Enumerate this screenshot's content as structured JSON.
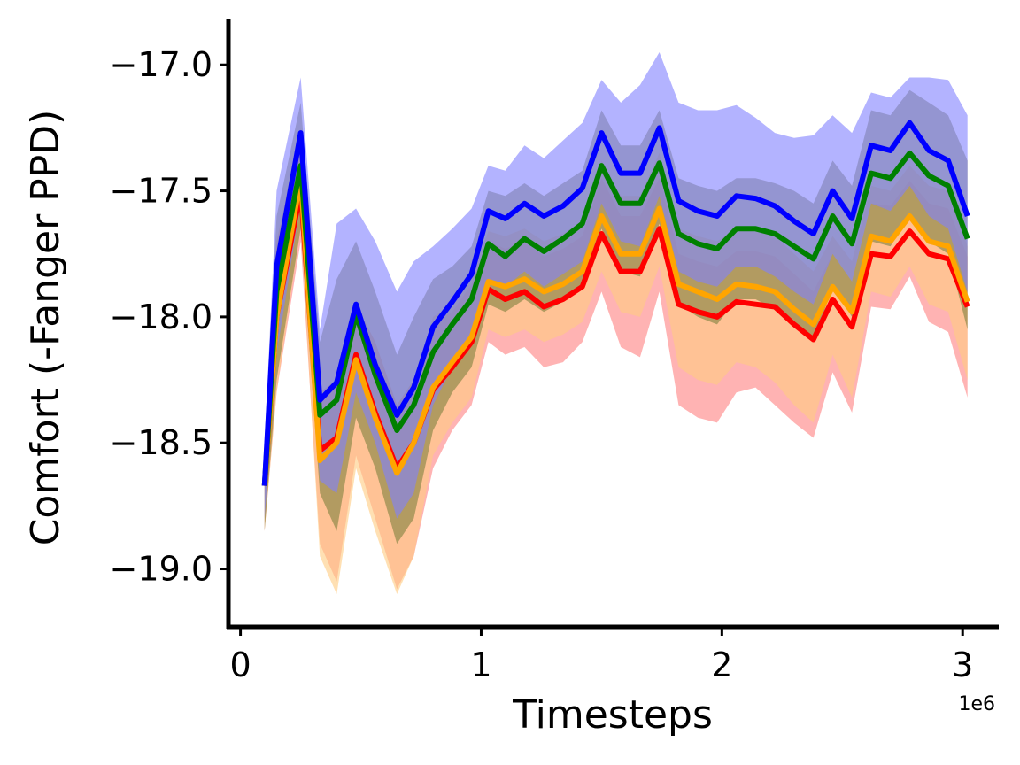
{
  "chart_data": {
    "type": "line",
    "title": "",
    "xlabel": "Timesteps",
    "ylabel": "Comfort (-Fanger PPD)",
    "x_offset_label": "1e6",
    "xlim": [
      -0.05,
      3.15
    ],
    "ylim": [
      -19.23,
      -16.82
    ],
    "x_ticks": [
      0,
      1,
      2,
      3
    ],
    "x_tick_labels": [
      "0",
      "1",
      "2",
      "3"
    ],
    "y_ticks": [
      -17.0,
      -17.5,
      -18.0,
      -18.5,
      -19.0
    ],
    "y_tick_labels": [
      "−17.0",
      "−17.5",
      "−18.0",
      "−18.5",
      "−19.0"
    ],
    "grid": false,
    "legend": false,
    "x": [
      0.1,
      0.15,
      0.25,
      0.33,
      0.4,
      0.48,
      0.56,
      0.65,
      0.72,
      0.8,
      0.88,
      0.96,
      1.03,
      1.1,
      1.18,
      1.26,
      1.34,
      1.42,
      1.5,
      1.58,
      1.66,
      1.74,
      1.82,
      1.9,
      1.98,
      2.06,
      2.14,
      2.22,
      2.3,
      2.38,
      2.46,
      2.54,
      2.62,
      2.7,
      2.78,
      2.86,
      2.94,
      3.02
    ],
    "series": [
      {
        "color": "#ff0000",
        "band_color": "#ff8080",
        "mean": [
          -18.67,
          -18.0,
          -17.5,
          -18.53,
          -18.48,
          -18.15,
          -18.38,
          -18.6,
          -18.5,
          -18.29,
          -18.2,
          -18.1,
          -17.89,
          -17.93,
          -17.9,
          -17.96,
          -17.93,
          -17.88,
          -17.67,
          -17.82,
          -17.82,
          -17.65,
          -17.95,
          -17.98,
          -18.0,
          -17.94,
          -17.95,
          -17.96,
          -18.03,
          -18.09,
          -17.93,
          -18.04,
          -17.75,
          -17.76,
          -17.66,
          -17.75,
          -17.77,
          -17.96
        ],
        "lower": [
          -18.85,
          -18.3,
          -17.7,
          -18.9,
          -19.05,
          -18.55,
          -18.8,
          -19.08,
          -18.95,
          -18.6,
          -18.45,
          -18.35,
          -18.1,
          -18.15,
          -18.12,
          -18.2,
          -18.18,
          -18.1,
          -17.9,
          -18.12,
          -18.16,
          -17.9,
          -18.35,
          -18.4,
          -18.42,
          -18.3,
          -18.28,
          -18.35,
          -18.42,
          -18.48,
          -18.22,
          -18.38,
          -17.96,
          -17.97,
          -17.84,
          -18.02,
          -18.06,
          -18.32
        ],
        "upper": [
          -18.5,
          -17.7,
          -17.3,
          -18.3,
          -18.25,
          -17.95,
          -18.1,
          -18.35,
          -18.25,
          -18.02,
          -17.98,
          -17.87,
          -17.7,
          -17.73,
          -17.7,
          -17.76,
          -17.73,
          -17.68,
          -17.45,
          -17.6,
          -17.6,
          -17.45,
          -17.75,
          -17.78,
          -17.8,
          -17.74,
          -17.74,
          -17.76,
          -17.83,
          -17.9,
          -17.75,
          -17.86,
          -17.55,
          -17.56,
          -17.46,
          -17.55,
          -17.57,
          -17.76
        ]
      },
      {
        "color": "#ffa500",
        "band_color": "#ffcc80",
        "mean": [
          -18.67,
          -18.0,
          -17.45,
          -18.57,
          -18.5,
          -18.17,
          -18.4,
          -18.62,
          -18.5,
          -18.28,
          -18.18,
          -18.08,
          -17.86,
          -17.88,
          -17.85,
          -17.9,
          -17.87,
          -17.82,
          -17.6,
          -17.75,
          -17.75,
          -17.57,
          -17.87,
          -17.9,
          -17.93,
          -17.87,
          -17.88,
          -17.9,
          -17.97,
          -18.03,
          -17.88,
          -17.98,
          -17.68,
          -17.7,
          -17.6,
          -17.7,
          -17.72,
          -17.94
        ],
        "lower": [
          -18.85,
          -18.3,
          -17.65,
          -18.95,
          -19.1,
          -18.6,
          -18.85,
          -19.1,
          -18.95,
          -18.55,
          -18.42,
          -18.32,
          -18.05,
          -18.08,
          -18.05,
          -18.1,
          -18.07,
          -18.02,
          -17.82,
          -17.98,
          -18.0,
          -17.8,
          -18.2,
          -18.25,
          -18.27,
          -18.18,
          -18.2,
          -18.26,
          -18.35,
          -18.42,
          -18.15,
          -18.32,
          -17.9,
          -17.92,
          -17.8,
          -17.95,
          -17.98,
          -18.25
        ],
        "upper": [
          -18.5,
          -17.7,
          -17.25,
          -18.3,
          -18.25,
          -17.95,
          -18.1,
          -18.35,
          -18.25,
          -18.0,
          -17.95,
          -17.84,
          -17.66,
          -17.68,
          -17.65,
          -17.7,
          -17.67,
          -17.62,
          -17.38,
          -17.52,
          -17.52,
          -17.35,
          -17.65,
          -17.68,
          -17.7,
          -17.65,
          -17.66,
          -17.68,
          -17.75,
          -17.82,
          -17.68,
          -17.78,
          -17.48,
          -17.5,
          -17.4,
          -17.48,
          -17.5,
          -17.72
        ]
      },
      {
        "color": "#008000",
        "band_color": "#7f8040",
        "mean": [
          -18.67,
          -17.9,
          -17.4,
          -18.39,
          -18.33,
          -17.99,
          -18.23,
          -18.45,
          -18.35,
          -18.14,
          -18.03,
          -17.93,
          -17.71,
          -17.76,
          -17.69,
          -17.74,
          -17.69,
          -17.63,
          -17.4,
          -17.55,
          -17.55,
          -17.39,
          -17.67,
          -17.71,
          -17.73,
          -17.65,
          -17.65,
          -17.67,
          -17.72,
          -17.77,
          -17.6,
          -17.71,
          -17.43,
          -17.45,
          -17.35,
          -17.44,
          -17.48,
          -17.69
        ],
        "lower": [
          -18.85,
          -18.25,
          -17.65,
          -18.7,
          -18.85,
          -18.4,
          -18.6,
          -18.9,
          -18.8,
          -18.45,
          -18.3,
          -18.2,
          -17.95,
          -17.98,
          -17.93,
          -17.98,
          -17.94,
          -17.88,
          -17.65,
          -17.82,
          -17.84,
          -17.63,
          -17.95,
          -18.0,
          -18.03,
          -17.93,
          -17.93,
          -17.97,
          -18.03,
          -18.1,
          -17.88,
          -18.0,
          -17.7,
          -17.72,
          -17.6,
          -17.7,
          -17.75,
          -18.05
        ],
        "upper": [
          -18.5,
          -17.6,
          -17.15,
          -18.1,
          -17.85,
          -17.7,
          -17.9,
          -18.15,
          -18.0,
          -17.85,
          -17.8,
          -17.72,
          -17.5,
          -17.52,
          -17.47,
          -17.52,
          -17.47,
          -17.42,
          -17.18,
          -17.32,
          -17.32,
          -17.18,
          -17.45,
          -17.48,
          -17.5,
          -17.45,
          -17.45,
          -17.47,
          -17.5,
          -17.55,
          -17.38,
          -17.48,
          -17.18,
          -17.2,
          -17.1,
          -17.15,
          -17.2,
          -17.38
        ]
      },
      {
        "color": "#0000ff",
        "band_color": "#8080ff",
        "mean": [
          -18.67,
          -17.8,
          -17.27,
          -18.33,
          -18.26,
          -17.95,
          -18.19,
          -18.39,
          -18.28,
          -18.04,
          -17.94,
          -17.83,
          -17.58,
          -17.61,
          -17.55,
          -17.6,
          -17.56,
          -17.49,
          -17.27,
          -17.43,
          -17.43,
          -17.25,
          -17.54,
          -17.58,
          -17.6,
          -17.52,
          -17.53,
          -17.56,
          -17.62,
          -17.67,
          -17.5,
          -17.61,
          -17.32,
          -17.34,
          -17.23,
          -17.34,
          -17.38,
          -17.6
        ],
        "lower": [
          -18.8,
          -18.15,
          -17.55,
          -18.65,
          -18.7,
          -18.3,
          -18.5,
          -18.8,
          -18.7,
          -18.35,
          -18.2,
          -18.1,
          -17.85,
          -17.88,
          -17.82,
          -17.88,
          -17.83,
          -17.78,
          -17.55,
          -17.7,
          -17.72,
          -17.52,
          -17.82,
          -17.86,
          -17.88,
          -17.8,
          -17.8,
          -17.84,
          -17.9,
          -17.95,
          -17.75,
          -17.86,
          -17.55,
          -17.58,
          -17.48,
          -17.6,
          -17.65,
          -17.9
        ],
        "upper": [
          -18.5,
          -17.5,
          -17.05,
          -18.05,
          -17.63,
          -17.57,
          -17.7,
          -17.9,
          -17.78,
          -17.72,
          -17.65,
          -17.57,
          -17.4,
          -17.42,
          -17.32,
          -17.37,
          -17.3,
          -17.23,
          -17.06,
          -17.15,
          -17.08,
          -16.95,
          -17.15,
          -17.18,
          -17.18,
          -17.16,
          -17.21,
          -17.27,
          -17.29,
          -17.28,
          -17.2,
          -17.27,
          -17.11,
          -17.13,
          -17.05,
          -17.05,
          -17.06,
          -17.2
        ]
      }
    ]
  }
}
